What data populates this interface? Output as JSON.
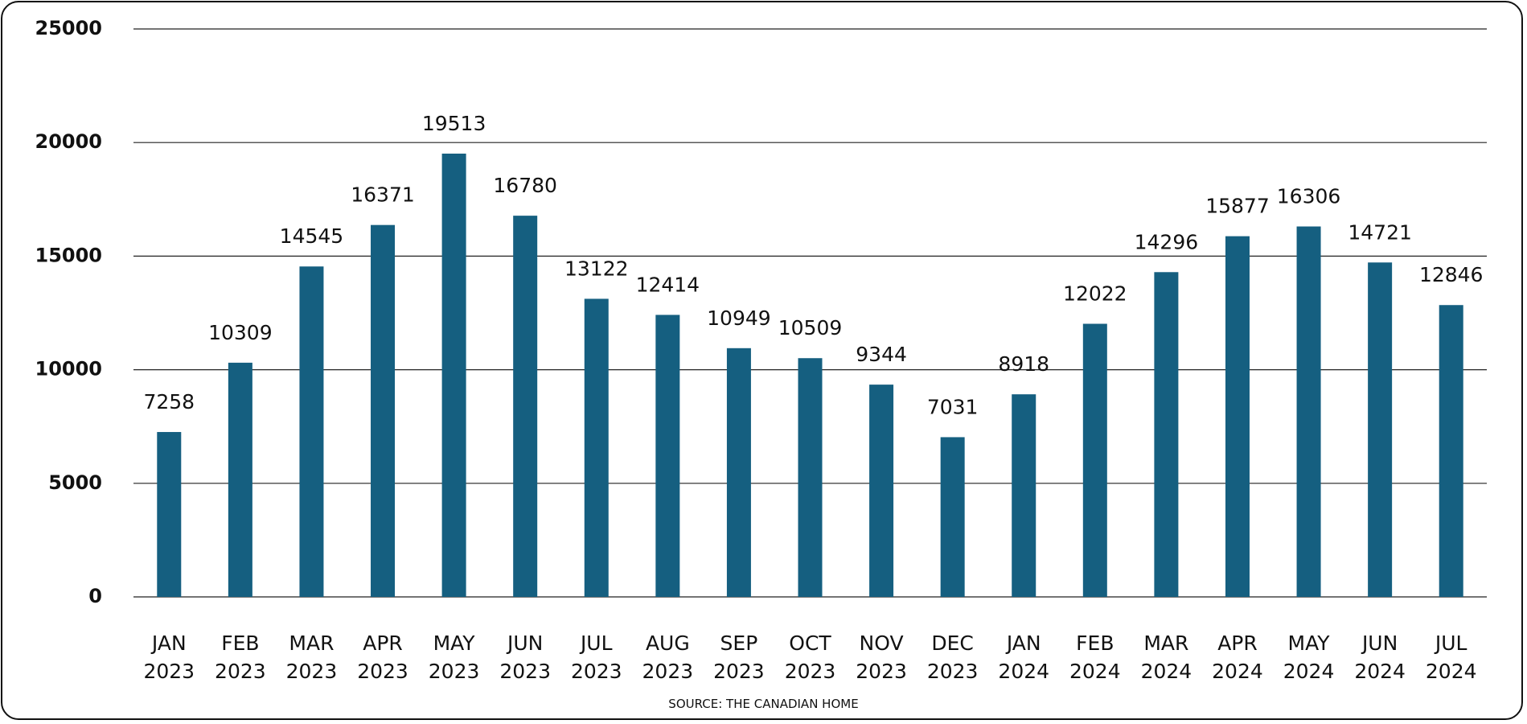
{
  "chart_data": {
    "type": "bar",
    "categories": [
      "JAN 2023",
      "FEB 2023",
      "MAR 2023",
      "APR 2023",
      "MAY 2023",
      "JUN 2023",
      "JUL 2023",
      "AUG 2023",
      "SEP 2023",
      "OCT 2023",
      "NOV 2023",
      "DEC 2023",
      "JAN 2024",
      "FEB 2024",
      "MAR 2024",
      "APR 2024",
      "MAY 2024",
      "JUN 2024",
      "JUL 2024"
    ],
    "values": [
      7258,
      10309,
      14545,
      16371,
      19513,
      16780,
      13122,
      12414,
      10949,
      10509,
      9344,
      7031,
      8918,
      12022,
      14296,
      15877,
      16306,
      14721,
      12846
    ],
    "color": "#155f80",
    "ylim": [
      0,
      25000
    ],
    "yticks": [
      0,
      5000,
      10000,
      15000,
      20000,
      25000
    ],
    "grid": true,
    "source": "SOURCE: THE CANADIAN HOME"
  }
}
